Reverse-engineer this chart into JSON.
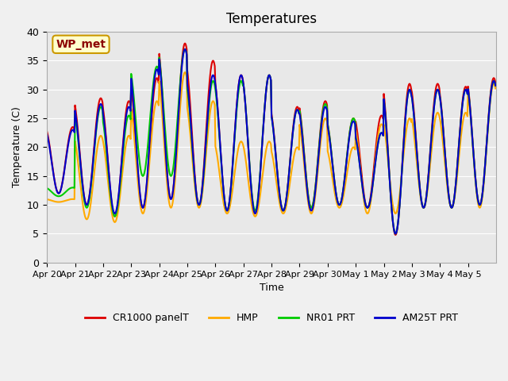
{
  "title": "Temperatures",
  "xlabel": "Time",
  "ylabel": "Temperature (C)",
  "ylim": [
    0,
    40
  ],
  "background_color": "#f0f0f0",
  "plot_bg_color": "#e8e8e8",
  "annotation_text": "WP_met",
  "annotation_bg": "#ffffcc",
  "annotation_border": "#cc9900",
  "series": {
    "CR1000 panelT": {
      "color": "#dd0000",
      "lw": 1.5
    },
    "HMP": {
      "color": "#ffaa00",
      "lw": 1.5
    },
    "NR01 PRT": {
      "color": "#00cc00",
      "lw": 1.5
    },
    "AM25T PRT": {
      "color": "#0000cc",
      "lw": 1.5
    }
  },
  "xtick_labels": [
    "Apr 20",
    "Apr 21",
    "Apr 22",
    "Apr 23",
    "Apr 24",
    "Apr 25",
    "Apr 26",
    "Apr 27",
    "Apr 28",
    "Apr 29",
    "Apr 30",
    "May 1",
    "May 2",
    "May 3",
    "May 4",
    "May 5"
  ],
  "daily_peaks_cr1000": [
    23.5,
    28.5,
    28.0,
    32.0,
    38.0,
    35.0,
    32.5,
    32.5,
    27.0,
    28.0,
    25.0,
    25.5,
    31.0,
    31.0,
    30.5,
    32.0
  ],
  "daily_troughs_cr1000": [
    12.0,
    10.0,
    8.0,
    9.5,
    11.0,
    10.0,
    9.0,
    8.5,
    9.0,
    9.5,
    10.0,
    9.5,
    4.8,
    9.5,
    9.5,
    10.0
  ],
  "daily_peaks_hmp": [
    11.0,
    22.0,
    22.0,
    28.0,
    33.0,
    28.0,
    21.0,
    21.0,
    20.0,
    25.0,
    20.0,
    24.0,
    25.0,
    26.0,
    26.0,
    31.0
  ],
  "daily_troughs_hmp": [
    10.5,
    7.5,
    7.0,
    8.5,
    9.5,
    9.5,
    8.5,
    8.0,
    8.5,
    8.5,
    9.5,
    8.5,
    8.5,
    9.5,
    9.5,
    9.5
  ],
  "daily_peaks_nr01": [
    13.0,
    27.0,
    25.5,
    34.0,
    37.0,
    31.5,
    31.5,
    32.5,
    26.5,
    27.5,
    25.0,
    22.5,
    30.0,
    30.0,
    30.0,
    31.5
  ],
  "daily_troughs_nr01": [
    11.5,
    9.5,
    8.0,
    15.0,
    15.0,
    10.0,
    9.0,
    9.0,
    9.0,
    9.5,
    10.0,
    9.5,
    5.0,
    9.5,
    9.5,
    10.0
  ],
  "daily_peaks_am25": [
    23.0,
    27.5,
    27.0,
    33.5,
    37.0,
    32.5,
    32.5,
    32.5,
    26.5,
    27.0,
    24.5,
    22.5,
    30.0,
    30.0,
    30.0,
    31.5
  ],
  "daily_troughs_am25": [
    12.0,
    10.0,
    8.5,
    9.5,
    11.0,
    10.0,
    9.0,
    8.5,
    9.0,
    9.0,
    10.0,
    9.5,
    5.0,
    9.5,
    9.5,
    10.0
  ],
  "n_per_day": 48
}
